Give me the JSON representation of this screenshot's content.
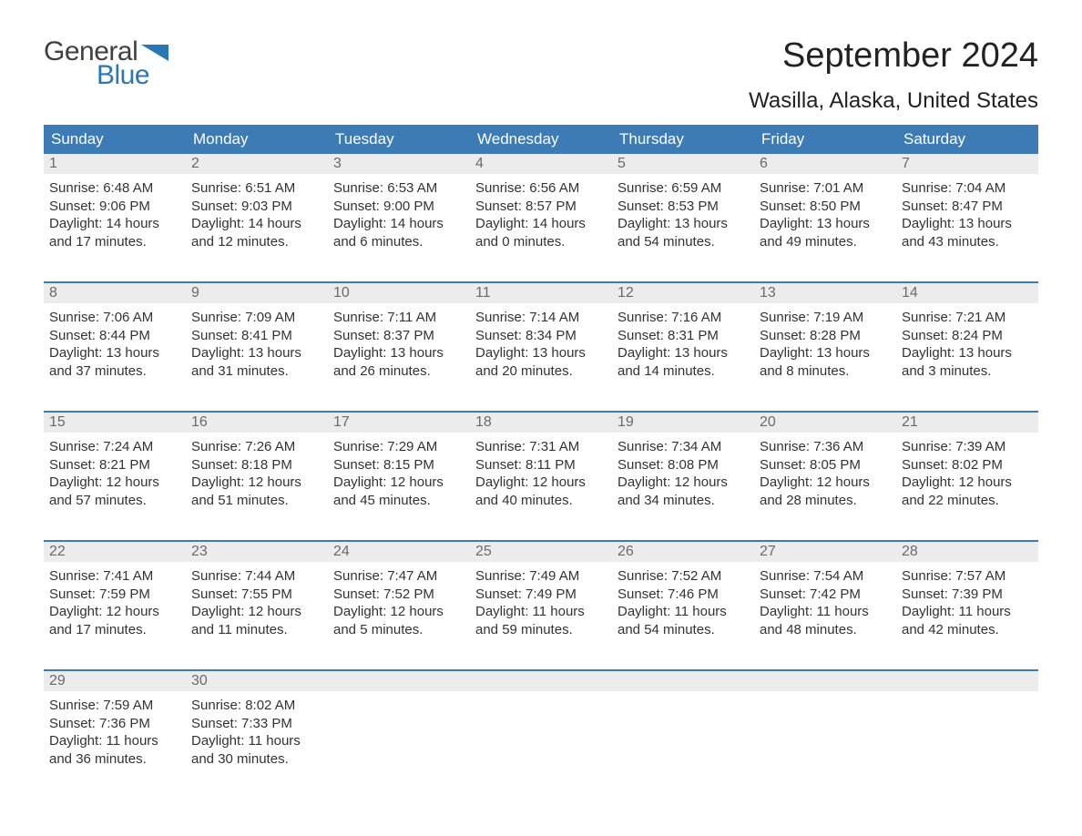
{
  "logo": {
    "general": "General",
    "blue": "Blue"
  },
  "title": "September 2024",
  "location": "Wasilla, Alaska, United States",
  "colors": {
    "header_bg": "#3c7bb5",
    "header_text": "#ffffff",
    "day_header_bg": "#ececec",
    "day_header_text": "#6a6a6a",
    "body_text": "#333333",
    "logo_blue": "#2a77b8",
    "logo_dark": "#404040",
    "row_border": "#3c7bb5"
  },
  "weekdays": [
    "Sunday",
    "Monday",
    "Tuesday",
    "Wednesday",
    "Thursday",
    "Friday",
    "Saturday"
  ],
  "days": [
    {
      "n": "1",
      "sunrise": "Sunrise: 6:48 AM",
      "sunset": "Sunset: 9:06 PM",
      "dl1": "Daylight: 14 hours",
      "dl2": "and 17 minutes."
    },
    {
      "n": "2",
      "sunrise": "Sunrise: 6:51 AM",
      "sunset": "Sunset: 9:03 PM",
      "dl1": "Daylight: 14 hours",
      "dl2": "and 12 minutes."
    },
    {
      "n": "3",
      "sunrise": "Sunrise: 6:53 AM",
      "sunset": "Sunset: 9:00 PM",
      "dl1": "Daylight: 14 hours",
      "dl2": "and 6 minutes."
    },
    {
      "n": "4",
      "sunrise": "Sunrise: 6:56 AM",
      "sunset": "Sunset: 8:57 PM",
      "dl1": "Daylight: 14 hours",
      "dl2": "and 0 minutes."
    },
    {
      "n": "5",
      "sunrise": "Sunrise: 6:59 AM",
      "sunset": "Sunset: 8:53 PM",
      "dl1": "Daylight: 13 hours",
      "dl2": "and 54 minutes."
    },
    {
      "n": "6",
      "sunrise": "Sunrise: 7:01 AM",
      "sunset": "Sunset: 8:50 PM",
      "dl1": "Daylight: 13 hours",
      "dl2": "and 49 minutes."
    },
    {
      "n": "7",
      "sunrise": "Sunrise: 7:04 AM",
      "sunset": "Sunset: 8:47 PM",
      "dl1": "Daylight: 13 hours",
      "dl2": "and 43 minutes."
    },
    {
      "n": "8",
      "sunrise": "Sunrise: 7:06 AM",
      "sunset": "Sunset: 8:44 PM",
      "dl1": "Daylight: 13 hours",
      "dl2": "and 37 minutes."
    },
    {
      "n": "9",
      "sunrise": "Sunrise: 7:09 AM",
      "sunset": "Sunset: 8:41 PM",
      "dl1": "Daylight: 13 hours",
      "dl2": "and 31 minutes."
    },
    {
      "n": "10",
      "sunrise": "Sunrise: 7:11 AM",
      "sunset": "Sunset: 8:37 PM",
      "dl1": "Daylight: 13 hours",
      "dl2": "and 26 minutes."
    },
    {
      "n": "11",
      "sunrise": "Sunrise: 7:14 AM",
      "sunset": "Sunset: 8:34 PM",
      "dl1": "Daylight: 13 hours",
      "dl2": "and 20 minutes."
    },
    {
      "n": "12",
      "sunrise": "Sunrise: 7:16 AM",
      "sunset": "Sunset: 8:31 PM",
      "dl1": "Daylight: 13 hours",
      "dl2": "and 14 minutes."
    },
    {
      "n": "13",
      "sunrise": "Sunrise: 7:19 AM",
      "sunset": "Sunset: 8:28 PM",
      "dl1": "Daylight: 13 hours",
      "dl2": "and 8 minutes."
    },
    {
      "n": "14",
      "sunrise": "Sunrise: 7:21 AM",
      "sunset": "Sunset: 8:24 PM",
      "dl1": "Daylight: 13 hours",
      "dl2": "and 3 minutes."
    },
    {
      "n": "15",
      "sunrise": "Sunrise: 7:24 AM",
      "sunset": "Sunset: 8:21 PM",
      "dl1": "Daylight: 12 hours",
      "dl2": "and 57 minutes."
    },
    {
      "n": "16",
      "sunrise": "Sunrise: 7:26 AM",
      "sunset": "Sunset: 8:18 PM",
      "dl1": "Daylight: 12 hours",
      "dl2": "and 51 minutes."
    },
    {
      "n": "17",
      "sunrise": "Sunrise: 7:29 AM",
      "sunset": "Sunset: 8:15 PM",
      "dl1": "Daylight: 12 hours",
      "dl2": "and 45 minutes."
    },
    {
      "n": "18",
      "sunrise": "Sunrise: 7:31 AM",
      "sunset": "Sunset: 8:11 PM",
      "dl1": "Daylight: 12 hours",
      "dl2": "and 40 minutes."
    },
    {
      "n": "19",
      "sunrise": "Sunrise: 7:34 AM",
      "sunset": "Sunset: 8:08 PM",
      "dl1": "Daylight: 12 hours",
      "dl2": "and 34 minutes."
    },
    {
      "n": "20",
      "sunrise": "Sunrise: 7:36 AM",
      "sunset": "Sunset: 8:05 PM",
      "dl1": "Daylight: 12 hours",
      "dl2": "and 28 minutes."
    },
    {
      "n": "21",
      "sunrise": "Sunrise: 7:39 AM",
      "sunset": "Sunset: 8:02 PM",
      "dl1": "Daylight: 12 hours",
      "dl2": "and 22 minutes."
    },
    {
      "n": "22",
      "sunrise": "Sunrise: 7:41 AM",
      "sunset": "Sunset: 7:59 PM",
      "dl1": "Daylight: 12 hours",
      "dl2": "and 17 minutes."
    },
    {
      "n": "23",
      "sunrise": "Sunrise: 7:44 AM",
      "sunset": "Sunset: 7:55 PM",
      "dl1": "Daylight: 12 hours",
      "dl2": "and 11 minutes."
    },
    {
      "n": "24",
      "sunrise": "Sunrise: 7:47 AM",
      "sunset": "Sunset: 7:52 PM",
      "dl1": "Daylight: 12 hours",
      "dl2": "and 5 minutes."
    },
    {
      "n": "25",
      "sunrise": "Sunrise: 7:49 AM",
      "sunset": "Sunset: 7:49 PM",
      "dl1": "Daylight: 11 hours",
      "dl2": "and 59 minutes."
    },
    {
      "n": "26",
      "sunrise": "Sunrise: 7:52 AM",
      "sunset": "Sunset: 7:46 PM",
      "dl1": "Daylight: 11 hours",
      "dl2": "and 54 minutes."
    },
    {
      "n": "27",
      "sunrise": "Sunrise: 7:54 AM",
      "sunset": "Sunset: 7:42 PM",
      "dl1": "Daylight: 11 hours",
      "dl2": "and 48 minutes."
    },
    {
      "n": "28",
      "sunrise": "Sunrise: 7:57 AM",
      "sunset": "Sunset: 7:39 PM",
      "dl1": "Daylight: 11 hours",
      "dl2": "and 42 minutes."
    },
    {
      "n": "29",
      "sunrise": "Sunrise: 7:59 AM",
      "sunset": "Sunset: 7:36 PM",
      "dl1": "Daylight: 11 hours",
      "dl2": "and 36 minutes."
    },
    {
      "n": "30",
      "sunrise": "Sunrise: 8:02 AM",
      "sunset": "Sunset: 7:33 PM",
      "dl1": "Daylight: 11 hours",
      "dl2": "and 30 minutes."
    }
  ],
  "layout": {
    "start_weekday": 0,
    "days_in_month": 30,
    "cells_per_row": 7
  }
}
